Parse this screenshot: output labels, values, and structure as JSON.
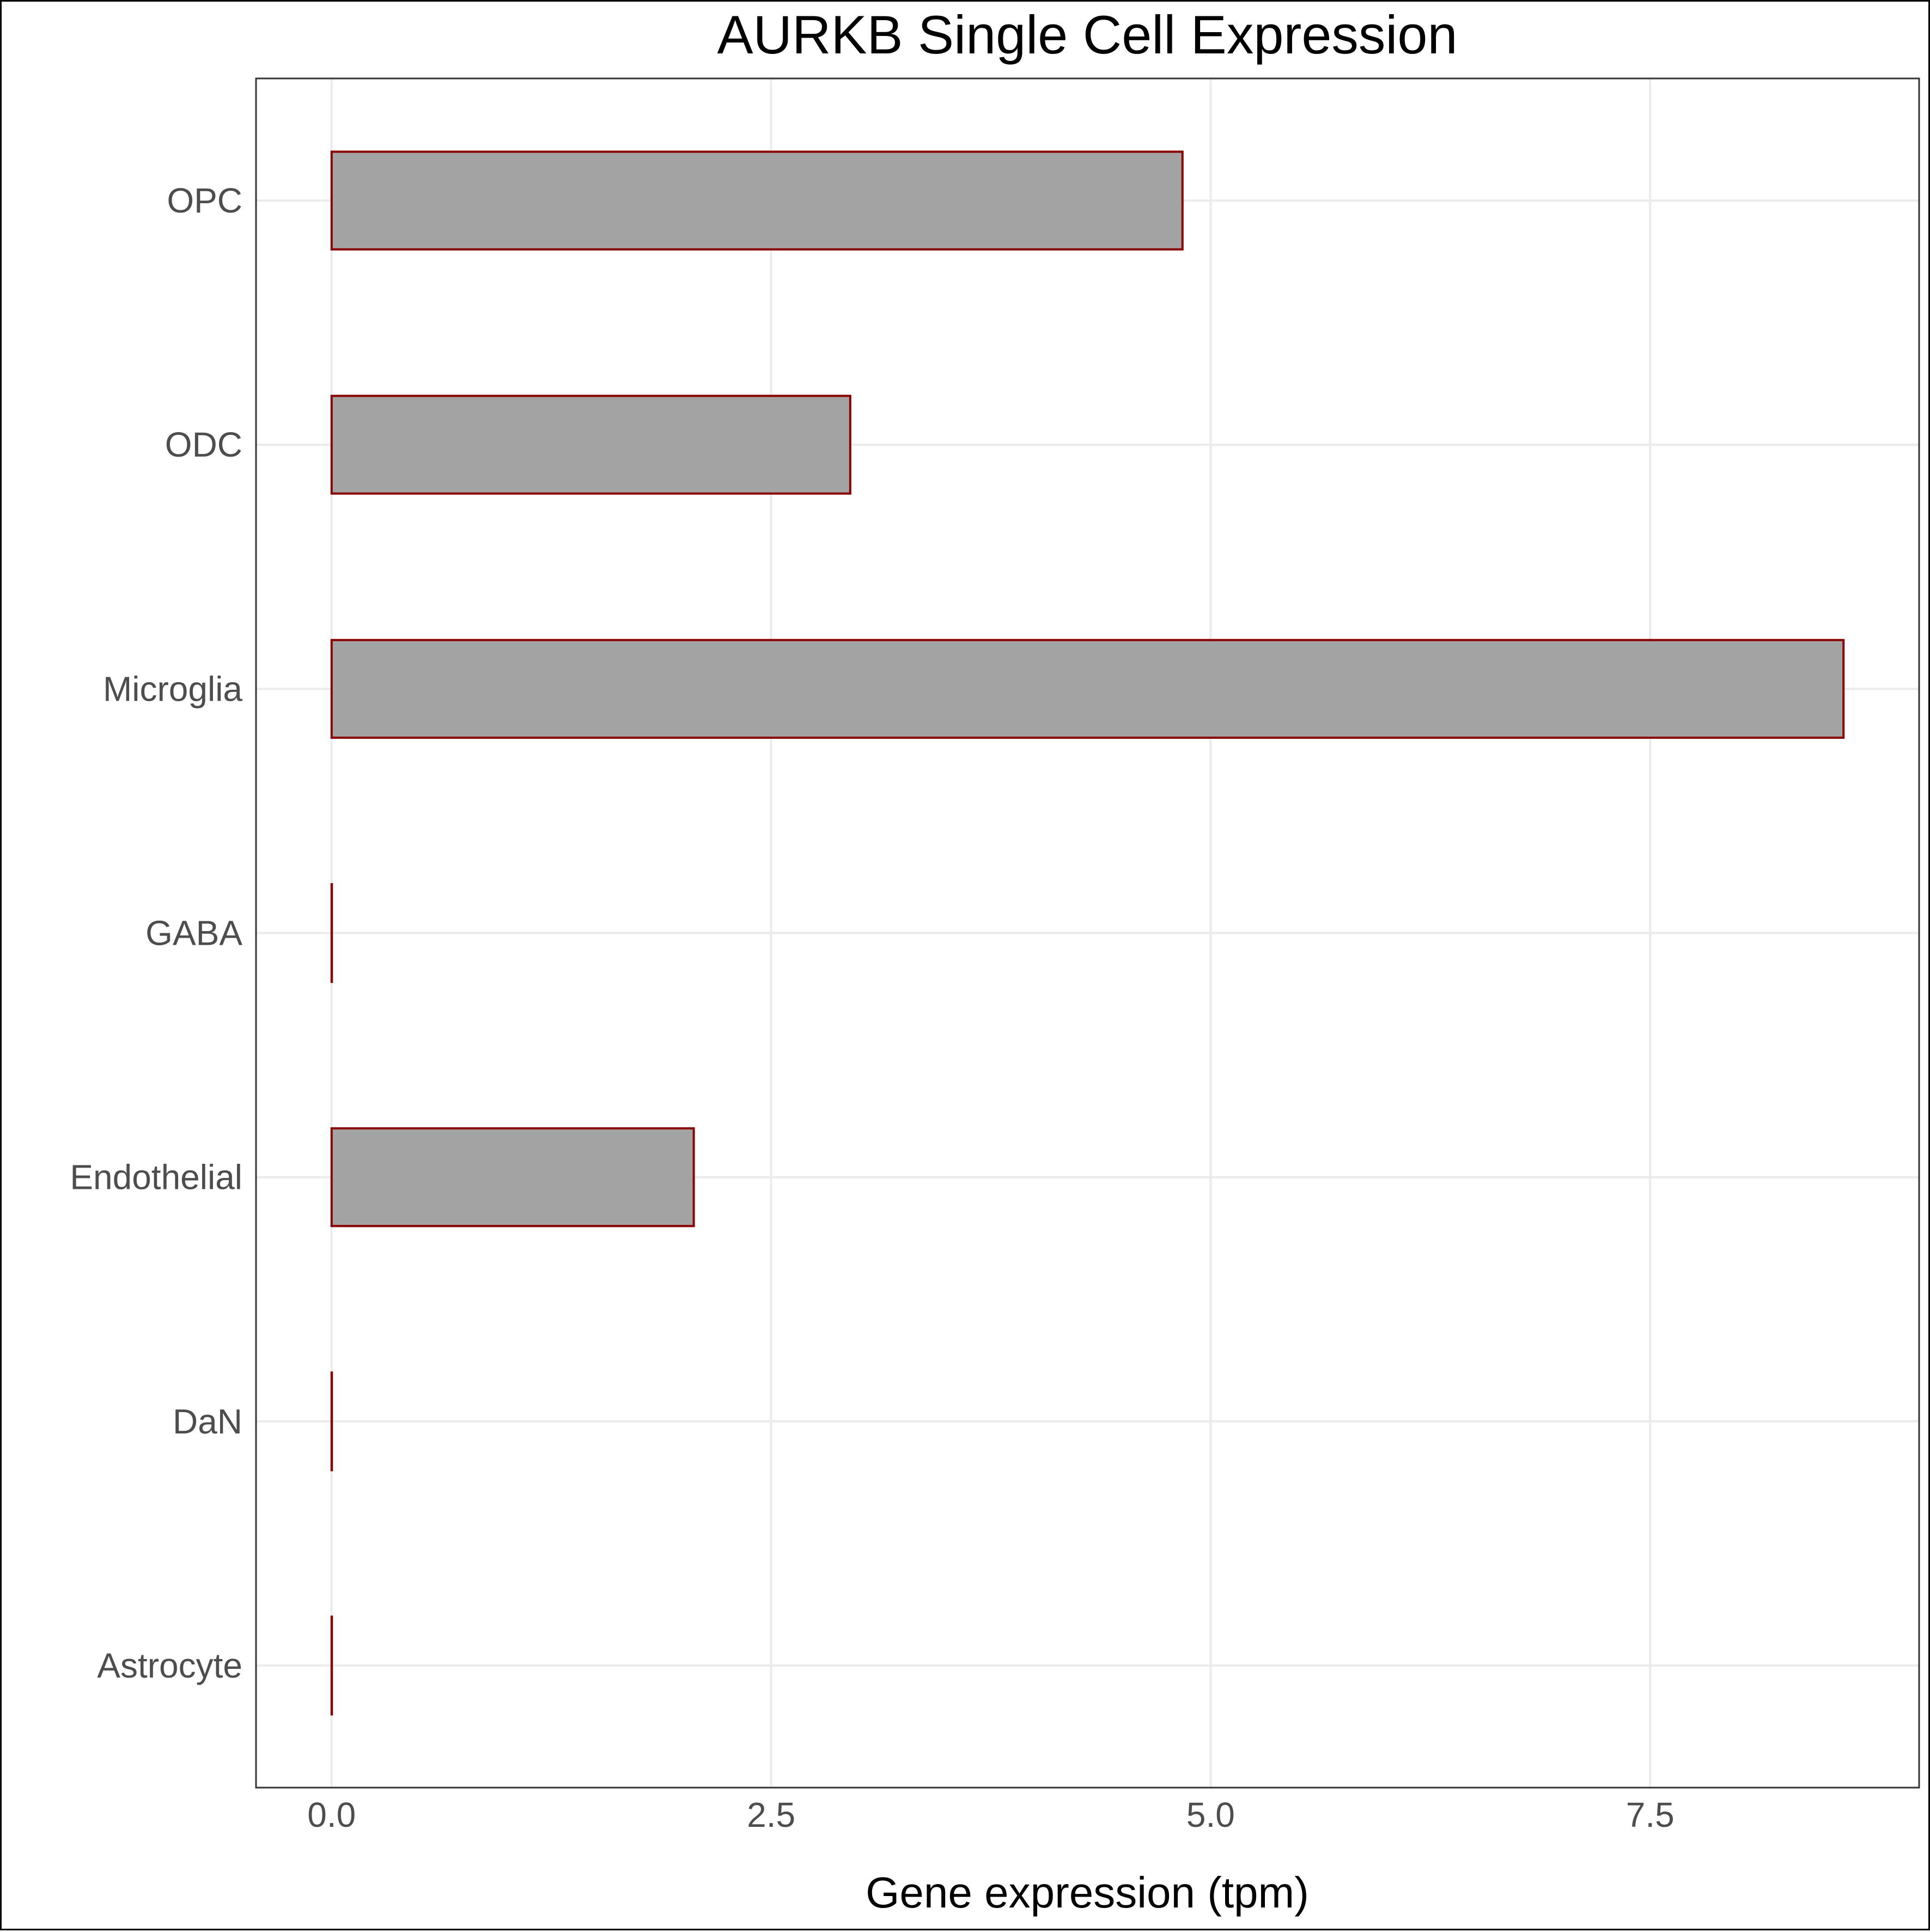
{
  "chart_data": {
    "type": "bar",
    "orientation": "horizontal",
    "title": "AURKB Single Cell Expression",
    "xlabel": "Gene expression (tpm)",
    "ylabel": "",
    "categories": [
      "Astrocyte",
      "DaN",
      "Endothelial",
      "GABA",
      "Microglia",
      "ODC",
      "OPC"
    ],
    "values": [
      0.0,
      0.0,
      2.06,
      0.0,
      8.6,
      2.95,
      4.84
    ],
    "xlim": [
      -0.43,
      9.03
    ],
    "xticks": [
      0.0,
      2.5,
      5.0,
      7.5
    ],
    "xtick_labels": [
      "0.0",
      "2.5",
      "5.0",
      "7.5"
    ],
    "grid": true,
    "legend": "none",
    "colors": {
      "bar_fill": "#a3a3a3",
      "bar_outline": "#8b0000",
      "grid": "#ebebeb",
      "panel_border": "#333333",
      "tick_label": "#4d4d4d",
      "title": "#000000"
    }
  }
}
